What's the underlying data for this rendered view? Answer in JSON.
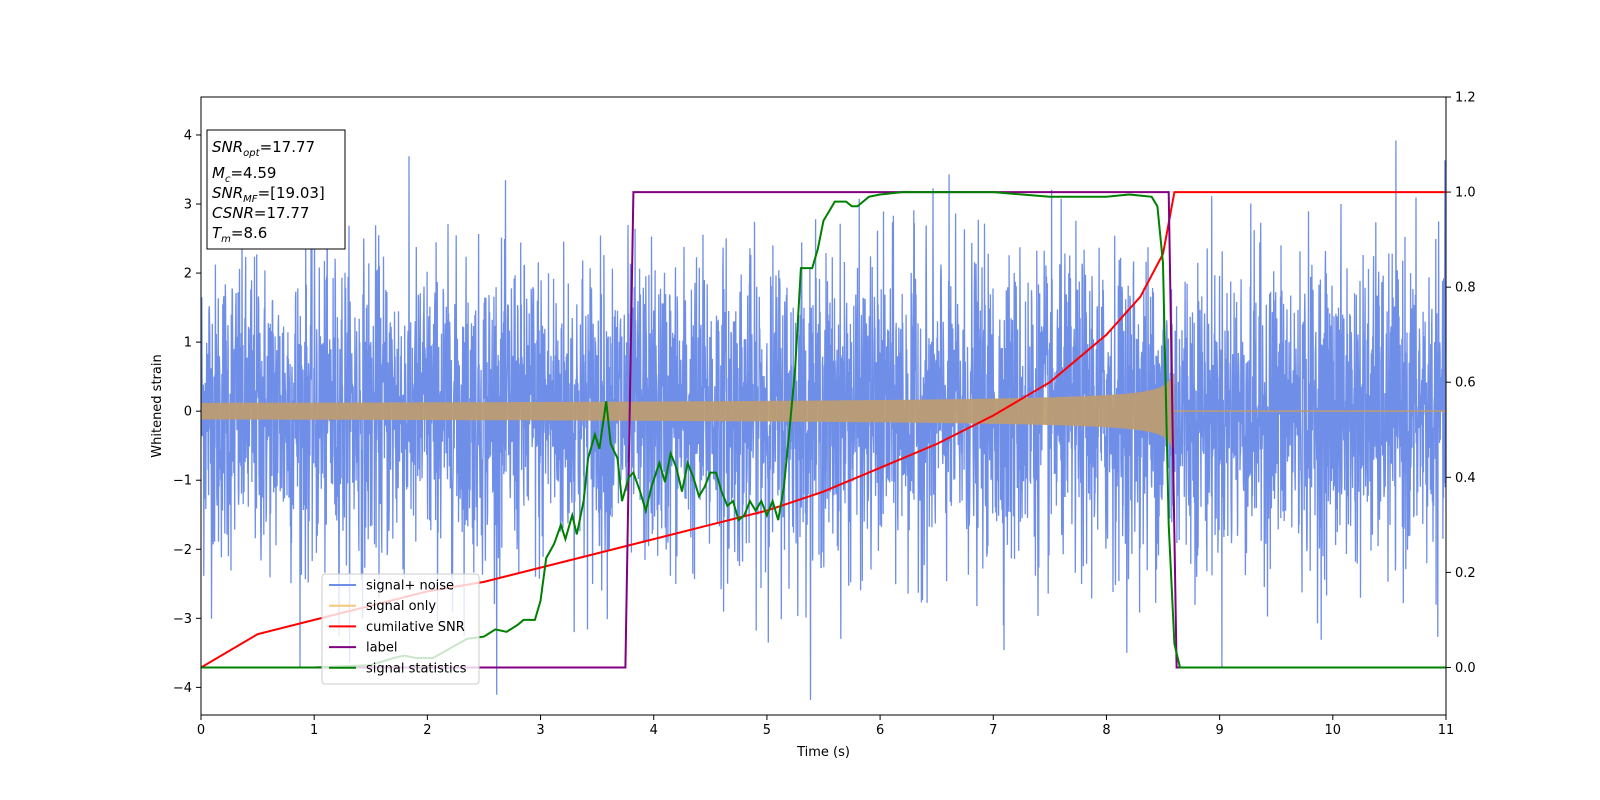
{
  "chart_data": {
    "type": "line",
    "xlabel": "Time (s)",
    "ylabel": "Whitened strain",
    "xlim": [
      0,
      11
    ],
    "ylim": [
      -4.4,
      4.55
    ],
    "y2lim": [
      -0.1,
      1.2
    ],
    "x_ticks": [
      "0",
      "1",
      "2",
      "3",
      "4",
      "5",
      "6",
      "7",
      "8",
      "9",
      "10",
      "11"
    ],
    "y_ticks": [
      "−4",
      "−3",
      "−2",
      "−1",
      "0",
      "1",
      "2",
      "3",
      "4"
    ],
    "y_tick_values": [
      -4,
      -3,
      -2,
      -1,
      0,
      1,
      2,
      3,
      4
    ],
    "y2_ticks": [
      "0.0",
      "0.2",
      "0.4",
      "0.6",
      "0.8",
      "1.0",
      "1.2"
    ],
    "y2_tick_values": [
      0,
      0.2,
      0.4,
      0.6,
      0.8,
      1.0,
      1.2
    ],
    "grid": false,
    "legend_position": "lower-left",
    "legend": [
      "signal+ noise",
      "signal only",
      "cumilative SNR",
      "label",
      "signal statistics"
    ],
    "colors": {
      "noise": "#6f8ee8",
      "signal": "#f5c77e",
      "overlap": "#bc9c73",
      "snr": "#ff0000",
      "label": "#800080",
      "stat": "#008000"
    },
    "info_box": [
      {
        "main": "SNR",
        "sub": "opt",
        "value": "=17.77"
      },
      {
        "main": "M",
        "sub": "c",
        "value": "=4.59"
      },
      {
        "main": "SNR",
        "sub": "MF",
        "value": "=[19.03]"
      },
      {
        "main": "CSNR",
        "sub": "",
        "value": "=17.77"
      },
      {
        "main": "T",
        "sub": "m",
        "value": "=8.6"
      }
    ],
    "series": [
      {
        "name": "signal+ noise",
        "axis": "left",
        "description_of_shape": "gaussian noise, sigma ~1.1",
        "noise_sigma": 1.1,
        "max_abs": 4.2
      },
      {
        "name": "signal only",
        "axis": "left",
        "merger_time": 8.6,
        "amplitude_start": 0.12,
        "amplitude_peak": 0.95
      },
      {
        "name": "cumilative SNR",
        "axis": "right",
        "x": [
          0,
          0.5,
          1,
          1.5,
          2,
          2.5,
          3,
          3.5,
          4,
          4.5,
          5,
          5.5,
          6,
          6.5,
          7,
          7.5,
          8,
          8.3,
          8.5,
          8.6,
          11
        ],
        "y": [
          0,
          0.07,
          0.1,
          0.13,
          0.16,
          0.18,
          0.21,
          0.24,
          0.27,
          0.3,
          0.33,
          0.37,
          0.42,
          0.47,
          0.53,
          0.6,
          0.7,
          0.78,
          0.87,
          1.0,
          1.0
        ]
      },
      {
        "name": "label",
        "axis": "right",
        "x": [
          0,
          3.75,
          3.82,
          8.55,
          8.62,
          11
        ],
        "y": [
          0,
          0,
          1,
          1,
          0,
          0
        ]
      },
      {
        "name": "signal statistics",
        "axis": "right",
        "x": [
          0,
          1.0,
          1.5,
          1.7,
          1.8,
          1.9,
          2.05,
          2.2,
          2.35,
          2.5,
          2.6,
          2.7,
          2.8,
          2.85,
          2.95,
          3.0,
          3.05,
          3.12,
          3.18,
          3.22,
          3.28,
          3.32,
          3.38,
          3.42,
          3.48,
          3.52,
          3.58,
          3.62,
          3.68,
          3.72,
          3.78,
          3.82,
          3.88,
          3.93,
          3.98,
          4.05,
          4.1,
          4.15,
          4.2,
          4.25,
          4.3,
          4.35,
          4.4,
          4.45,
          4.5,
          4.55,
          4.6,
          4.65,
          4.7,
          4.75,
          4.8,
          4.85,
          4.9,
          4.95,
          5.0,
          5.05,
          5.1,
          5.15,
          5.2,
          5.25,
          5.3,
          5.35,
          5.4,
          5.45,
          5.5,
          5.55,
          5.6,
          5.65,
          5.7,
          5.75,
          5.8,
          5.85,
          5.9,
          6.0,
          6.2,
          6.3,
          6.4,
          6.5,
          6.7,
          7.0,
          7.5,
          8.0,
          8.2,
          8.4,
          8.45,
          8.5,
          8.55,
          8.6,
          8.65,
          8.7,
          8.75,
          8.8,
          11
        ],
        "y": [
          0,
          0,
          0.005,
          0.02,
          0.025,
          0.02,
          0.02,
          0.04,
          0.06,
          0.065,
          0.08,
          0.075,
          0.09,
          0.1,
          0.1,
          0.14,
          0.23,
          0.26,
          0.3,
          0.27,
          0.32,
          0.28,
          0.35,
          0.44,
          0.49,
          0.46,
          0.56,
          0.47,
          0.44,
          0.35,
          0.4,
          0.41,
          0.37,
          0.33,
          0.38,
          0.43,
          0.39,
          0.45,
          0.42,
          0.37,
          0.43,
          0.4,
          0.36,
          0.38,
          0.41,
          0.41,
          0.37,
          0.34,
          0.35,
          0.31,
          0.32,
          0.35,
          0.33,
          0.35,
          0.32,
          0.35,
          0.31,
          0.38,
          0.5,
          0.63,
          0.84,
          0.84,
          0.84,
          0.88,
          0.94,
          0.96,
          0.98,
          0.98,
          0.98,
          0.97,
          0.97,
          0.98,
          0.99,
          0.995,
          1.0,
          1.0,
          1.0,
          1.0,
          1.0,
          1.0,
          0.99,
          0.99,
          0.995,
          0.99,
          0.97,
          0.85,
          0.3,
          0.05,
          0.0,
          0.0,
          0.0,
          0.0,
          0.0
        ]
      }
    ]
  }
}
